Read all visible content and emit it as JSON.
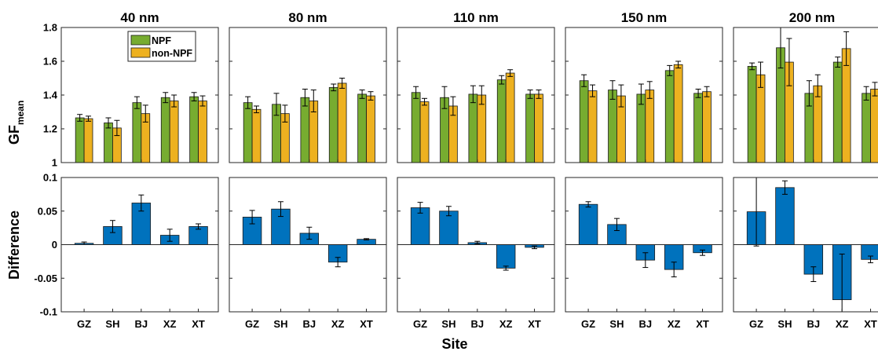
{
  "figure": {
    "xlabel": "Site",
    "ylabel_top": "GF",
    "ylabel_top_sub": "mean",
    "ylabel_bottom": "Difference"
  },
  "legend": [
    {
      "label": "NPF",
      "color": "#77ac30"
    },
    {
      "label": "non-NPF",
      "color": "#edb120"
    }
  ],
  "colors": {
    "npf": "#77ac30",
    "non_npf": "#edb120",
    "difference": "#0072bd"
  },
  "chart_data": [
    {
      "panel": "GF_mean",
      "type": "bar",
      "ylim": [
        1,
        1.8
      ],
      "yticks": [
        "1",
        "1.2",
        "1.4",
        "1.6",
        "1.8"
      ],
      "categories": [
        "GZ",
        "SH",
        "BJ",
        "XZ",
        "XT"
      ],
      "groups": [
        {
          "title": "40 nm",
          "series": [
            {
              "name": "NPF",
              "values": [
                1.265,
                1.235,
                1.355,
                1.385,
                1.39
              ],
              "errors": [
                0.02,
                0.03,
                0.035,
                0.03,
                0.025
              ]
            },
            {
              "name": "non-NPF",
              "values": [
                1.26,
                1.205,
                1.29,
                1.365,
                1.365
              ],
              "errors": [
                0.015,
                0.045,
                0.05,
                0.035,
                0.03
              ]
            }
          ]
        },
        {
          "title": "80 nm",
          "series": [
            {
              "name": "NPF",
              "values": [
                1.355,
                1.345,
                1.385,
                1.445,
                1.405
              ],
              "errors": [
                0.035,
                0.065,
                0.05,
                0.02,
                0.025
              ]
            },
            {
              "name": "non-NPF",
              "values": [
                1.315,
                1.29,
                1.365,
                1.47,
                1.395
              ],
              "errors": [
                0.02,
                0.05,
                0.065,
                0.03,
                0.025
              ]
            }
          ]
        },
        {
          "title": "110 nm",
          "series": [
            {
              "name": "NPF",
              "values": [
                1.415,
                1.385,
                1.405,
                1.49,
                1.405
              ],
              "errors": [
                0.035,
                0.065,
                0.05,
                0.025,
                0.025
              ]
            },
            {
              "name": "non-NPF",
              "values": [
                1.36,
                1.335,
                1.4,
                1.53,
                1.405
              ],
              "errors": [
                0.02,
                0.055,
                0.055,
                0.02,
                0.025
              ]
            }
          ]
        },
        {
          "title": "150 nm",
          "series": [
            {
              "name": "NPF",
              "values": [
                1.485,
                1.43,
                1.405,
                1.545,
                1.41
              ],
              "errors": [
                0.035,
                0.055,
                0.06,
                0.03,
                0.025
              ]
            },
            {
              "name": "non-NPF",
              "values": [
                1.425,
                1.395,
                1.43,
                1.58,
                1.42
              ],
              "errors": [
                0.035,
                0.065,
                0.05,
                0.02,
                0.03
              ]
            }
          ]
        },
        {
          "title": "200 nm",
          "series": [
            {
              "name": "NPF",
              "values": [
                1.57,
                1.68,
                1.41,
                1.595,
                1.41
              ],
              "errors": [
                0.02,
                0.12,
                0.075,
                0.03,
                0.04
              ]
            },
            {
              "name": "non-NPF",
              "values": [
                1.52,
                1.595,
                1.455,
                1.675,
                1.435
              ],
              "errors": [
                0.075,
                0.14,
                0.065,
                0.1,
                0.04
              ]
            }
          ]
        }
      ]
    },
    {
      "panel": "Difference",
      "type": "bar",
      "ylim": [
        -0.1,
        0.1
      ],
      "yticks": [
        "-0.1",
        "-0.05",
        "0",
        "0.05",
        "0.1"
      ],
      "categories": [
        "GZ",
        "SH",
        "BJ",
        "XZ",
        "XT"
      ],
      "groups": [
        {
          "title": "40 nm",
          "values": [
            0.002,
            0.027,
            0.062,
            0.014,
            0.027
          ],
          "errors": [
            0.002,
            0.009,
            0.012,
            0.009,
            0.004
          ]
        },
        {
          "title": "80 nm",
          "values": [
            0.041,
            0.053,
            0.017,
            -0.026,
            0.008
          ],
          "errors": [
            0.01,
            0.011,
            0.009,
            0.007,
            0.001
          ]
        },
        {
          "title": "110 nm",
          "values": [
            0.055,
            0.05,
            0.003,
            -0.035,
            -0.004
          ],
          "errors": [
            0.008,
            0.007,
            0.002,
            0.003,
            0.002
          ]
        },
        {
          "title": "150 nm",
          "values": [
            0.06,
            0.03,
            -0.023,
            -0.037,
            -0.012
          ],
          "errors": [
            0.004,
            0.009,
            0.011,
            0.011,
            0.004
          ]
        },
        {
          "title": "200 nm",
          "values": [
            0.049,
            0.085,
            -0.044,
            -0.082,
            -0.022
          ],
          "errors": [
            0.051,
            0.01,
            0.011,
            0.068,
            0.005
          ]
        }
      ]
    }
  ]
}
